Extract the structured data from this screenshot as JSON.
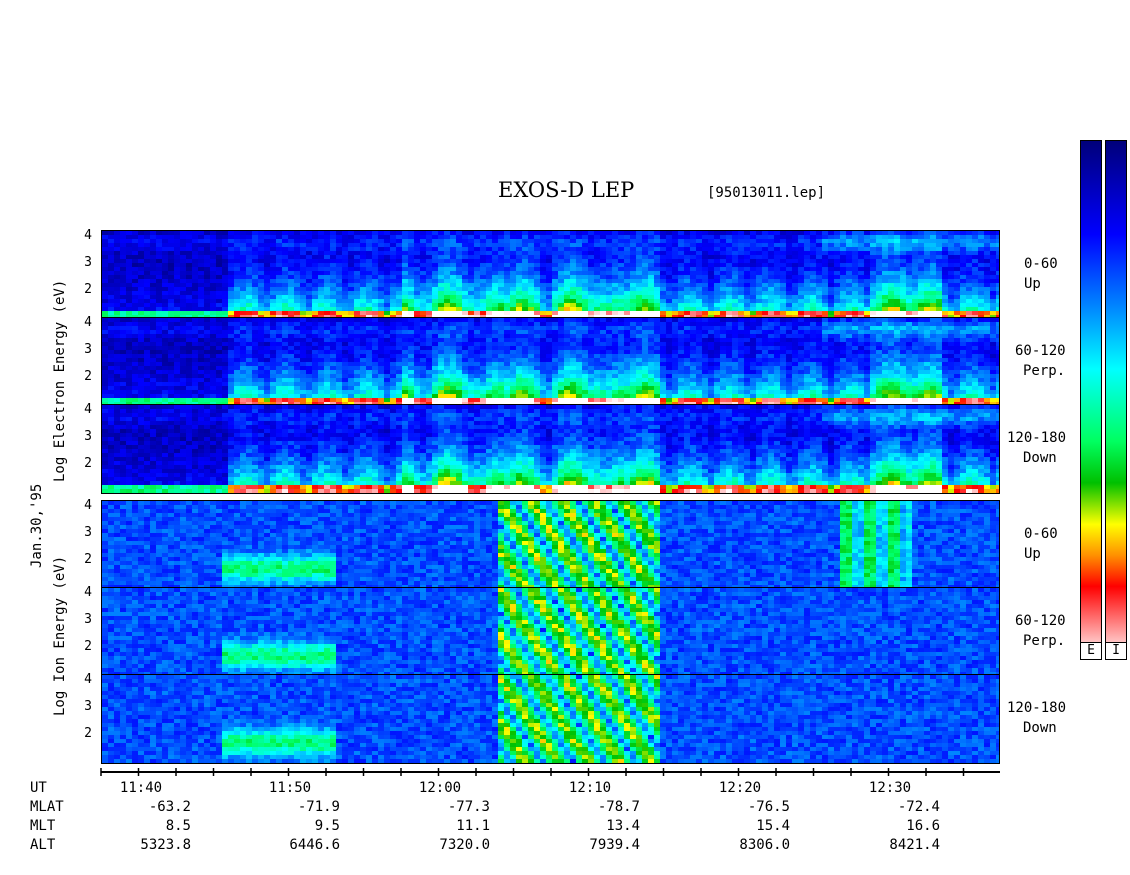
{
  "title": "EXOS-D LEP",
  "file": "[95013011.lep]",
  "date_label": "Jan.30,'95",
  "electron_axis_label": "Log   Electron   Energy (eV)",
  "ion_axis_label": "Log   Ion   Energy (eV)",
  "colorbar": {
    "electron_label": "E",
    "ion_label": "I"
  },
  "chart_data": {
    "type": "heatmap",
    "x_ticks": [
      "11:40",
      "11:50",
      "12:00",
      "12:10",
      "12:20",
      "12:30"
    ],
    "y_ticks": [
      "4",
      "3",
      "2"
    ],
    "panels": [
      {
        "species": "electron",
        "pitch": "0-60",
        "dir": "Up"
      },
      {
        "species": "electron",
        "pitch": "60-120",
        "dir": "Perp."
      },
      {
        "species": "electron",
        "pitch": "120-180",
        "dir": "Down"
      },
      {
        "species": "ion",
        "pitch": "0-60",
        "dir": "Up"
      },
      {
        "species": "ion",
        "pitch": "60-120",
        "dir": "Perp."
      },
      {
        "species": "ion",
        "pitch": "120-180",
        "dir": "Down"
      }
    ],
    "ephemeris": {
      "rows": [
        "UT",
        "MLAT",
        "MLT",
        "ALT"
      ],
      "MLAT": [
        "-63.2",
        "-71.9",
        "-77.3",
        "-78.7",
        "-76.5",
        "-72.4"
      ],
      "MLT": [
        "8.5",
        "9.5",
        "11.1",
        "13.4",
        "15.4",
        "16.6"
      ],
      "ALT": [
        "5323.8",
        "6446.6",
        "7320.0",
        "7939.4",
        "8306.0",
        "8421.4"
      ]
    }
  }
}
